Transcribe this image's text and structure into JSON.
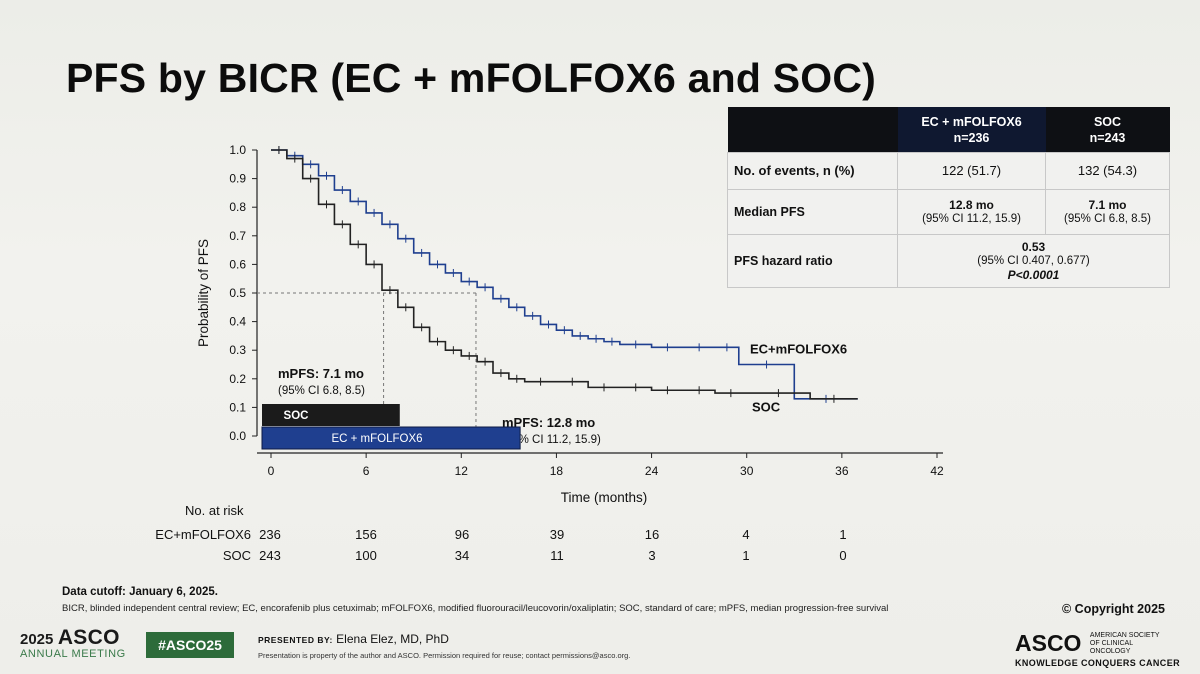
{
  "slide": {
    "title": "PFS by BICR (EC + mFOLFOX6 and SOC)",
    "cutoff": "Data cutoff: January 6, 2025.",
    "footnote": "BICR, blinded independent central review; EC, encorafenib plus cetuximab; mFOLFOX6, modified fluorouracil/leucovorin/oxaliplatin; SOC, standard of care; mPFS, median progression-free survival",
    "copyright": "© Copyright 2025"
  },
  "table": {
    "col1_line1": "EC + mFOLFOX6",
    "col1_line2": "n=236",
    "col2_line1": "SOC",
    "col2_line2": "n=243",
    "row1_label": "No. of events, n (%)",
    "row1_ec": "122 (51.7)",
    "row1_soc": "132 (54.3)",
    "row2_label": "Median PFS",
    "row2_ec": "12.8 mo",
    "row2_ec_ci": "(95% CI 11.2, 15.9)",
    "row2_soc": "7.1 mo",
    "row2_soc_ci": "(95% CI 6.8, 8.5)",
    "row3_label": "PFS hazard ratio",
    "row3_hr": "0.53",
    "row3_ci": "(95% CI 0.407, 0.677)",
    "row3_p": "P<0.0001"
  },
  "chart_data": {
    "type": "line",
    "xlabel": "Time (months)",
    "ylabel": "Probability of PFS",
    "xlim": [
      0,
      42
    ],
    "ylim": [
      0,
      1.0
    ],
    "xticks": [
      "0",
      "6",
      "12",
      "18",
      "24",
      "30",
      "36",
      "42"
    ],
    "yticks": [
      "0.0",
      "0.1",
      "0.2",
      "0.3",
      "0.4",
      "0.5",
      "0.6",
      "0.7",
      "0.8",
      "0.9",
      "1.0"
    ],
    "reference_line": 0.5,
    "series": [
      {
        "name": "EC+mFOLFOX6",
        "color": "#1f3f8f",
        "x": [
          0,
          1,
          2,
          3,
          4,
          5,
          6,
          7,
          8,
          9,
          10,
          11,
          12,
          13,
          14,
          15,
          16,
          17,
          18,
          19,
          20,
          21,
          22,
          24,
          26,
          28,
          29.5,
          33,
          37
        ],
        "y": [
          1.0,
          0.98,
          0.95,
          0.91,
          0.86,
          0.82,
          0.78,
          0.74,
          0.69,
          0.64,
          0.6,
          0.57,
          0.54,
          0.52,
          0.48,
          0.45,
          0.42,
          0.39,
          0.37,
          0.35,
          0.34,
          0.33,
          0.32,
          0.31,
          0.31,
          0.31,
          0.25,
          0.13,
          0.13
        ]
      },
      {
        "name": "SOC",
        "color": "#222222",
        "x": [
          0,
          1,
          2,
          3,
          4,
          5,
          6,
          7,
          8,
          9,
          10,
          11,
          12,
          13,
          14,
          15,
          16,
          18,
          20,
          22,
          24,
          26,
          28,
          30,
          34,
          37
        ],
        "y": [
          1.0,
          0.97,
          0.9,
          0.81,
          0.74,
          0.67,
          0.6,
          0.51,
          0.45,
          0.38,
          0.33,
          0.3,
          0.28,
          0.26,
          0.22,
          0.2,
          0.19,
          0.19,
          0.17,
          0.17,
          0.16,
          0.16,
          0.15,
          0.15,
          0.13,
          0.13
        ]
      }
    ],
    "annotations": {
      "soc_median": "mPFS: 7.1 mo",
      "soc_median_ci": "(95% CI 6.8, 8.5)",
      "soc_median_x": 7.1,
      "ec_median": "mPFS: 12.8 mo",
      "ec_median_ci": "(95% CI 11.2, 15.9)",
      "ec_median_x": 12.8,
      "soc_bar_label": "SOC",
      "ec_bar_label": "EC + mFOLFOX6",
      "soc_ci_upper": 8.5,
      "ec_ci_upper": 15.9
    },
    "number_at_risk": {
      "title": "No. at risk",
      "rows": [
        {
          "name": "EC+mFOLFOX6",
          "values": [
            "236",
            "156",
            "96",
            "39",
            "16",
            "4",
            "1"
          ]
        },
        {
          "name": "SOC",
          "values": [
            "243",
            "100",
            "34",
            "11",
            "3",
            "1",
            "0"
          ]
        }
      ]
    }
  },
  "footer": {
    "meeting_year": "2025",
    "meeting_org": "ASCO",
    "meeting_name": "ANNUAL MEETING",
    "hashtag": "#ASCO25",
    "presented_by": "PRESENTED BY:",
    "presenter": "Elena Elez, MD, PhD",
    "permission": "Presentation is property of the author and ASCO. Permission required for reuse; contact permissions@asco.org.",
    "org_logo": "ASCO",
    "org_full": "AMERICAN SOCIETY OF CLINICAL ONCOLOGY",
    "tagline": "KNOWLEDGE CONQUERS CANCER"
  }
}
